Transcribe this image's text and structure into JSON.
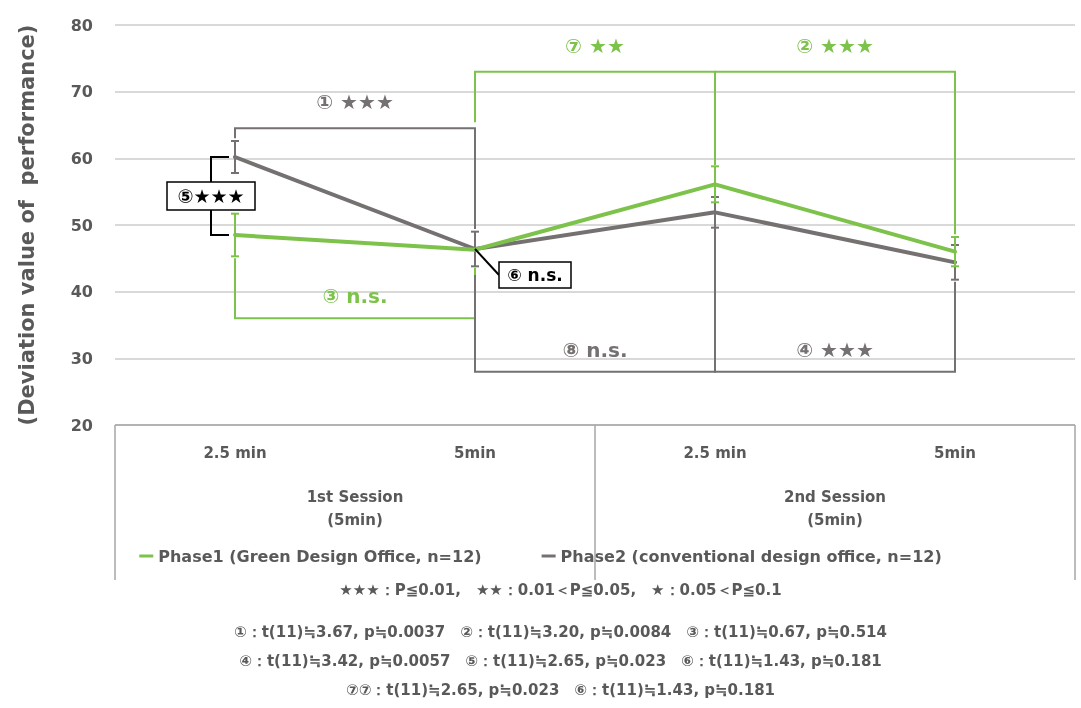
{
  "chart_data": {
    "type": "line",
    "ylabel": "(Deviation value of  performance)",
    "categories": [
      "2.5 min",
      "5min",
      "2.5 min",
      "5min"
    ],
    "series": [
      {
        "name": "Phase1 (Green Design Office, n=12)",
        "color": "#7dc24b",
        "values": [
          48.5,
          46.3,
          56.1,
          46.0
        ],
        "errors": [
          3.2,
          null,
          2.7,
          2.2
        ]
      },
      {
        "name": "Phase2 (conventional design office, n=12)",
        "color": "#767171",
        "values": [
          60.2,
          46.4,
          51.9,
          44.4
        ],
        "errors": [
          2.4,
          2.6,
          2.3,
          2.6
        ]
      }
    ],
    "ylim": [
      20,
      80
    ],
    "yticks": [
      20,
      30,
      40,
      50,
      60,
      70,
      80
    ],
    "grid": "y",
    "legend": "bottom",
    "marker": "none",
    "line_style": "solid",
    "annotations": [
      "① ★★★",
      "⑦ ★★",
      "② ★★★",
      "③ n.s.",
      "⑧ n.s.",
      "④ ★★★",
      "⑤★★★",
      {
        "text": "⑥ n.s.",
        "x": "5min",
        "y": 46.4
      },
      "1st Session\n(5min)",
      "2nd Session\n(5min)",
      "★★★：P≦0.01,　★★：0.01＜P≦0.05,　★：0.05＜P≦0.1",
      "①：t(11)≒3.67, p≒0.0037　②：t(11)≒3.20, p≒0.0084　③：t(11)≒0.67, p≒0.514",
      "④：t(11)≒3.42, p≒0.0057　⑤：t(11)≒2.65, p≒0.023　⑥：t(11)≒1.43, p≒0.181",
      "⑦⑦：t(11)≒2.65, p≒0.023　⑥：t(11)≒1.43, p≒0.181"
    ]
  }
}
